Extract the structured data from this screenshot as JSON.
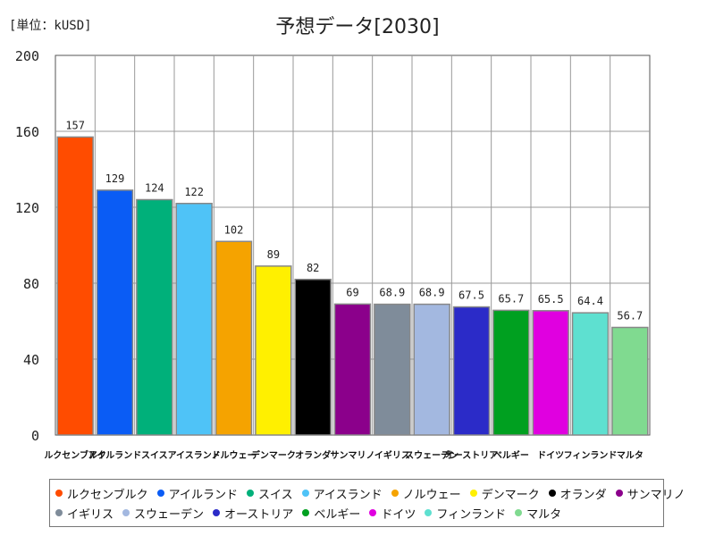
{
  "unit_label": "[単位：kUSD]",
  "chart_data": {
    "type": "bar",
    "title": "予想データ[2030]",
    "xlabel": "",
    "ylabel": "",
    "ylim": [
      0,
      200
    ],
    "yticks": [
      0,
      40,
      80,
      120,
      160,
      200
    ],
    "grid": true,
    "legend_placement": "bottom",
    "categories": [
      "ルクセンブルク",
      "アイルランド",
      "スイス",
      "アイスランド",
      "ノルウェー",
      "デンマーク",
      "オランダ",
      "サンマリノ",
      "イギリス",
      "スウェーデン",
      "オーストリア",
      "ベルギー",
      "ドイツ",
      "フィンランド",
      "マルタ"
    ],
    "values": [
      157,
      129,
      124,
      122,
      102,
      89,
      82,
      69,
      68.9,
      68.9,
      67.5,
      65.7,
      65.5,
      64.4,
      56.7
    ],
    "value_labels": [
      "157",
      "129",
      "124",
      "122",
      "102",
      "89",
      "82",
      "69",
      "68.9",
      "68.9",
      "67.5",
      "65.7",
      "65.5",
      "64.4",
      "56.7"
    ],
    "colors": [
      "#ff4c00",
      "#0a5cf5",
      "#00b07a",
      "#4fc3f7",
      "#f5a300",
      "#fff000",
      "#000000",
      "#8b008b",
      "#7f8c9a",
      "#a3b8e0",
      "#2b2bc8",
      "#00a020",
      "#e000e0",
      "#5ee0d0",
      "#80da90"
    ]
  }
}
